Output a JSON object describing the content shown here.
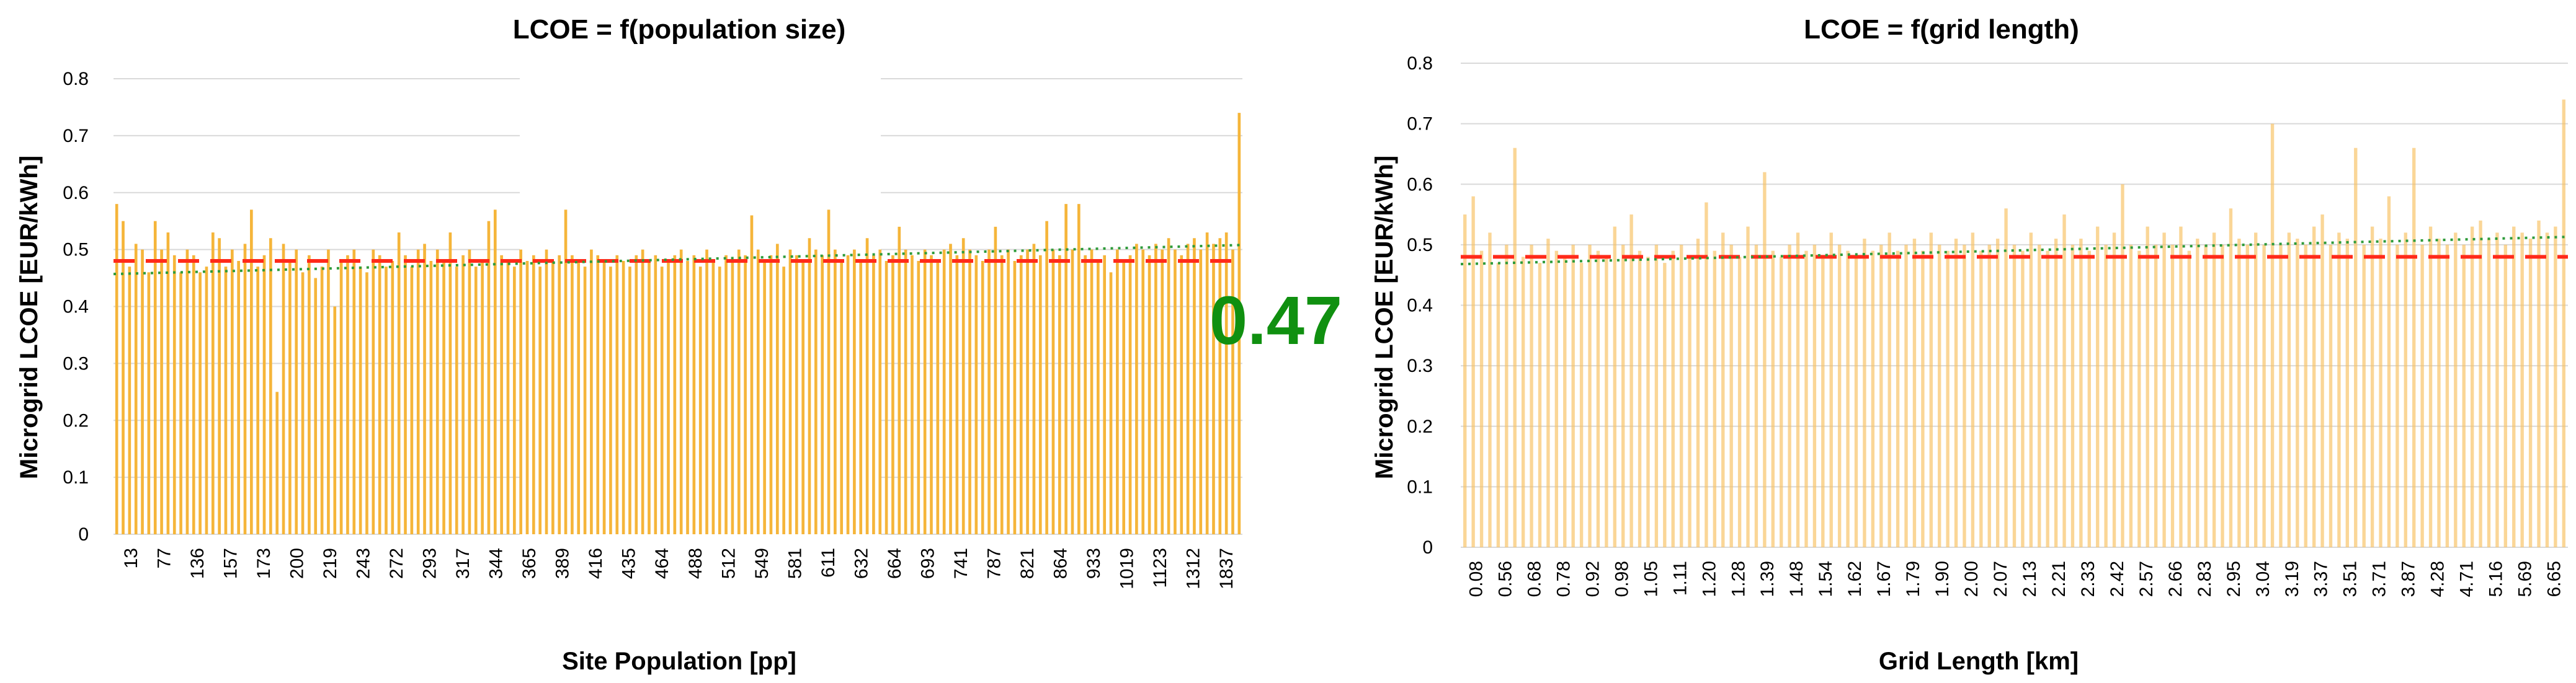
{
  "chart_data": [
    {
      "type": "bar",
      "title": "LCOE = f(population size)",
      "xlabel": "Site Population [pp]",
      "ylabel": "Microgrid LCOE [EUR/kWh]",
      "ylim": [
        0,
        0.8
      ],
      "yticks": [
        "0",
        "0.1",
        "0.2",
        "0.3",
        "0.4",
        "0.5",
        "0.6",
        "0.7",
        "0.8"
      ],
      "x_tick_labels": [
        "13",
        "77",
        "136",
        "157",
        "173",
        "200",
        "219",
        "243",
        "272",
        "293",
        "317",
        "344",
        "365",
        "389",
        "416",
        "435",
        "464",
        "488",
        "512",
        "549",
        "581",
        "611",
        "632",
        "664",
        "693",
        "741",
        "787",
        "821",
        "864",
        "933",
        "1019",
        "1123",
        "1312",
        "1837"
      ],
      "values": [
        0.58,
        0.55,
        0.47,
        0.51,
        0.5,
        0.46,
        0.55,
        0.5,
        0.53,
        0.49,
        0.46,
        0.5,
        0.49,
        0.46,
        0.47,
        0.53,
        0.52,
        0.47,
        0.5,
        0.48,
        0.51,
        0.57,
        0.47,
        0.49,
        0.52,
        0.25,
        0.51,
        0.48,
        0.5,
        0.46,
        0.49,
        0.45,
        0.47,
        0.5,
        0.4,
        0.48,
        0.49,
        0.5,
        0.47,
        0.46,
        0.5,
        0.49,
        0.47,
        0.48,
        0.53,
        0.49,
        0.47,
        0.5,
        0.51,
        0.48,
        0.5,
        0.48,
        0.53,
        0.47,
        0.49,
        0.5,
        0.47,
        0.48,
        0.55,
        0.57,
        0.49,
        0.48,
        0.47,
        0.5,
        0.48,
        0.49,
        0.47,
        0.5,
        0.48,
        0.49,
        0.57,
        0.49,
        0.48,
        0.47,
        0.5,
        0.49,
        0.48,
        0.47,
        0.49,
        0.48,
        0.47,
        0.49,
        0.5,
        0.48,
        0.49,
        0.47,
        0.48,
        0.49,
        0.5,
        0.48,
        0.49,
        0.47,
        0.5,
        0.48,
        0.47,
        0.49,
        0.48,
        0.5,
        0.49,
        0.56,
        0.5,
        0.48,
        0.49,
        0.51,
        0.47,
        0.5,
        0.49,
        0.48,
        0.52,
        0.5,
        0.49,
        0.57,
        0.5,
        0.48,
        0.49,
        0.5,
        0.48,
        0.52,
        0.49,
        0.5,
        0.48,
        0.49,
        0.54,
        0.5,
        0.49,
        0.48,
        0.5,
        0.49,
        0.48,
        0.5,
        0.51,
        0.49,
        0.52,
        0.5,
        0.49,
        0.48,
        0.5,
        0.54,
        0.49,
        0.5,
        0.48,
        0.49,
        0.5,
        0.51,
        0.49,
        0.55,
        0.5,
        0.49,
        0.58,
        0.5,
        0.58,
        0.49,
        0.5,
        0.48,
        0.49,
        0.46,
        0.5,
        0.48,
        0.49,
        0.51,
        0.5,
        0.49,
        0.51,
        0.5,
        0.52,
        0.5,
        0.49,
        0.51,
        0.52,
        0.5,
        0.53,
        0.51,
        0.52,
        0.53,
        0.5,
        0.74
      ],
      "mean_line": 0.48,
      "trend_line": {
        "start": 0.457,
        "end": 0.508
      },
      "annotation": "0.47"
    },
    {
      "type": "bar",
      "title": "LCOE = f(grid length)",
      "xlabel": "Grid Length [km]",
      "ylabel": "Microgrid LCOE [EUR/kWh]",
      "ylim": [
        0,
        0.8
      ],
      "yticks": [
        "0",
        "0.1",
        "0.2",
        "0.3",
        "0.4",
        "0.5",
        "0.6",
        "0.7",
        "0.8"
      ],
      "x_tick_labels": [
        "0.08",
        "0.56",
        "0.68",
        "0.78",
        "0.92",
        "0.98",
        "1.05",
        "1.11",
        "1.20",
        "1.28",
        "1.39",
        "1.48",
        "1.54",
        "1.62",
        "1.67",
        "1.79",
        "1.90",
        "2.00",
        "2.07",
        "2.13",
        "2.21",
        "2.33",
        "2.42",
        "2.57",
        "2.66",
        "2.83",
        "2.95",
        "3.04",
        "3.19",
        "3.37",
        "3.51",
        "3.71",
        "3.87",
        "4.28",
        "4.71",
        "5.16",
        "5.69",
        "6.65"
      ],
      "values": [
        0.55,
        0.58,
        0.49,
        0.52,
        0.47,
        0.5,
        0.66,
        0.48,
        0.5,
        0.47,
        0.51,
        0.49,
        0.48,
        0.5,
        0.47,
        0.5,
        0.49,
        0.48,
        0.53,
        0.5,
        0.55,
        0.49,
        0.48,
        0.5,
        0.47,
        0.49,
        0.5,
        0.48,
        0.51,
        0.57,
        0.49,
        0.52,
        0.5,
        0.48,
        0.53,
        0.5,
        0.62,
        0.49,
        0.48,
        0.5,
        0.52,
        0.49,
        0.5,
        0.48,
        0.52,
        0.5,
        0.49,
        0.48,
        0.51,
        0.49,
        0.5,
        0.52,
        0.49,
        0.5,
        0.51,
        0.49,
        0.52,
        0.5,
        0.49,
        0.51,
        0.5,
        0.52,
        0.49,
        0.5,
        0.51,
        0.56,
        0.5,
        0.49,
        0.52,
        0.5,
        0.49,
        0.51,
        0.55,
        0.5,
        0.51,
        0.49,
        0.53,
        0.5,
        0.52,
        0.6,
        0.5,
        0.49,
        0.53,
        0.5,
        0.52,
        0.5,
        0.53,
        0.49,
        0.51,
        0.5,
        0.52,
        0.5,
        0.56,
        0.51,
        0.5,
        0.52,
        0.5,
        0.7,
        0.5,
        0.52,
        0.51,
        0.5,
        0.53,
        0.55,
        0.5,
        0.52,
        0.51,
        0.66,
        0.5,
        0.53,
        0.51,
        0.58,
        0.5,
        0.52,
        0.66,
        0.5,
        0.53,
        0.51,
        0.5,
        0.52,
        0.5,
        0.53,
        0.54,
        0.51,
        0.52,
        0.5,
        0.53,
        0.52,
        0.51,
        0.54,
        0.52,
        0.53,
        0.74
      ],
      "mean_line": 0.48,
      "trend_line": {
        "start": 0.468,
        "end": 0.513
      }
    }
  ],
  "colors": {
    "bar_left": "#f5b53a",
    "bar_right": "#f8c060",
    "mean_line": "#ff2a1a",
    "trend_line": "#2e9b3a",
    "annotation": "#109010",
    "gridline": "#d9d9d9"
  }
}
